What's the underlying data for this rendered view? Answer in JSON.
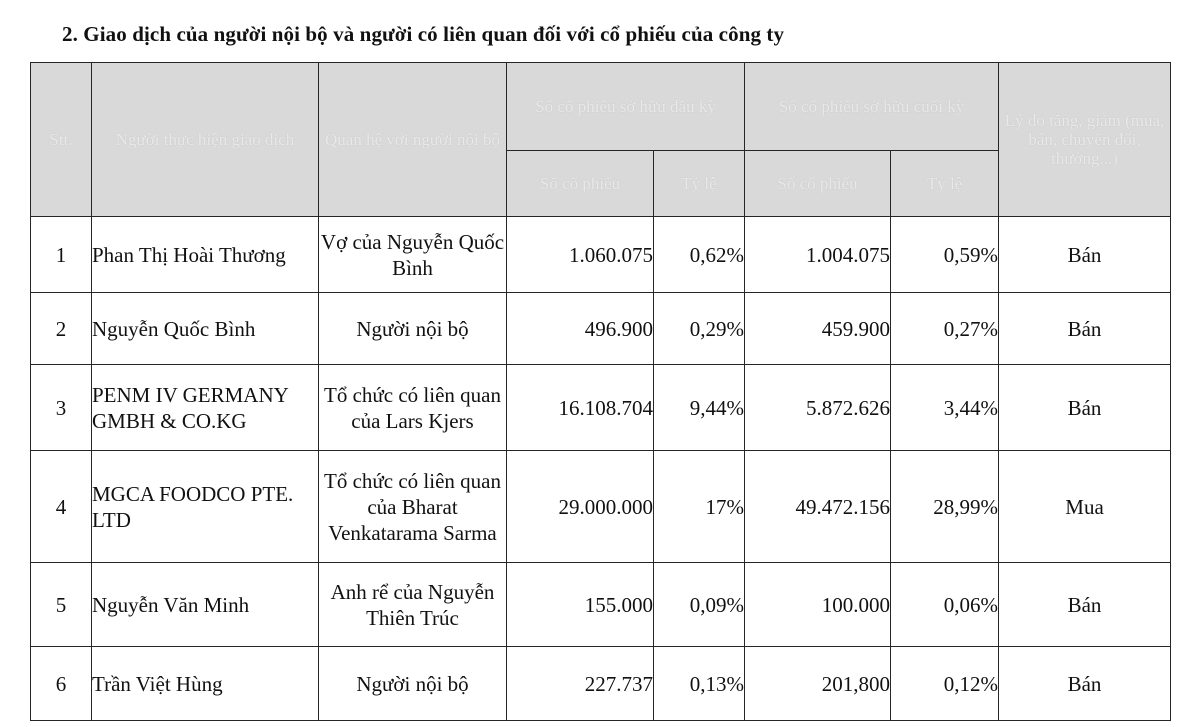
{
  "title": "2. Giao dịch của người nội bộ và người có liên quan đối với cổ phiếu của công ty",
  "headers": {
    "stt": "Stt.",
    "person": "Người thực hiện giao dịch",
    "relation": "Quan hệ với người nội bộ",
    "opening": "Số cổ phiếu sở hữu đầu kỳ",
    "closing": "Số cổ phiếu sở hữu cuối kỳ",
    "reason": "Lý do tăng, giảm (mua, bán, chuyển đổi, thưởng...)",
    "opening_shares": "Số cổ phiếu",
    "opening_ratio": "Tỷ lệ",
    "closing_shares": "Số cổ phiếu",
    "closing_ratio": "Tỷ lệ"
  },
  "rows": [
    {
      "stt": "1",
      "name": "Phan Thị Hoài Thương",
      "relation": "Vợ của Nguyễn Quốc Bình",
      "open_shares": "1.060.075",
      "open_ratio": "0,62%",
      "close_shares": "1.004.075",
      "close_ratio": "0,59%",
      "action": "Bán"
    },
    {
      "stt": "2",
      "name": "Nguyễn Quốc Bình",
      "relation": "Người nội bộ",
      "open_shares": "496.900",
      "open_ratio": "0,29%",
      "close_shares": "459.900",
      "close_ratio": "0,27%",
      "action": "Bán"
    },
    {
      "stt": "3",
      "name": "PENM IV GERMANY GMBH & CO.KG",
      "relation": "Tổ chức có liên quan của Lars Kjers",
      "open_shares": "16.108.704",
      "open_ratio": "9,44%",
      "close_shares": "5.872.626",
      "close_ratio": "3,44%",
      "action": "Bán"
    },
    {
      "stt": "4",
      "name": "MGCA FOODCO PTE. LTD",
      "relation": "Tổ chức có liên quan của Bharat Venkatarama Sarma",
      "open_shares": "29.000.000",
      "open_ratio": "17%",
      "close_shares": "49.472.156",
      "close_ratio": "28,99%",
      "action": "Mua"
    },
    {
      "stt": "5",
      "name": "Nguyễn Văn Minh",
      "relation": "Anh rể của Nguyễn Thiên Trúc",
      "open_shares": "155.000",
      "open_ratio": "0,09%",
      "close_shares": "100.000",
      "close_ratio": "0,06%",
      "action": "Bán"
    },
    {
      "stt": "6",
      "name": "Trần Việt Hùng",
      "relation": "Người nội bộ",
      "open_shares": "227.737",
      "open_ratio": "0,13%",
      "close_shares": "201,800",
      "close_ratio": "0,12%",
      "action": "Bán"
    }
  ]
}
